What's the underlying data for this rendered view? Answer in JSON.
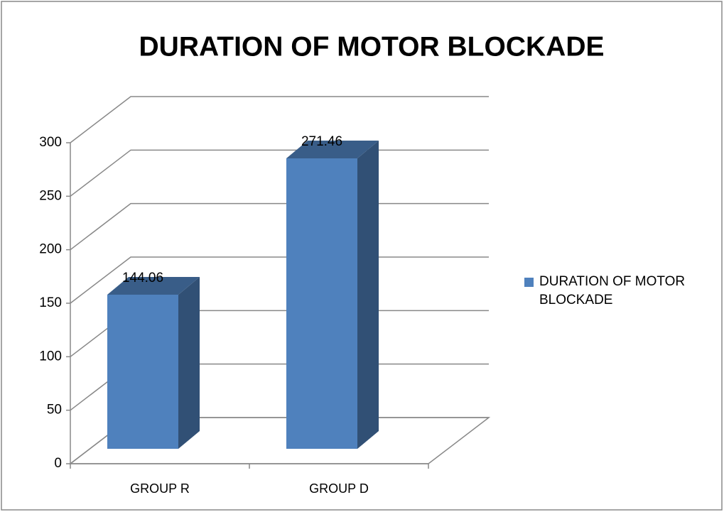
{
  "chart_data": {
    "type": "bar3d",
    "title": "DURATION OF MOTOR BLOCKADE",
    "categories": [
      "GROUP R",
      "GROUP D"
    ],
    "series": [
      {
        "name": "DURATION OF MOTOR BLOCKADE",
        "color": "#4f81bd",
        "values": [
          144.06,
          271.46
        ]
      }
    ],
    "ylim": [
      0,
      300
    ],
    "yticks": [
      0,
      50,
      100,
      150,
      200,
      250,
      300
    ],
    "grid": true,
    "legend": "right"
  }
}
